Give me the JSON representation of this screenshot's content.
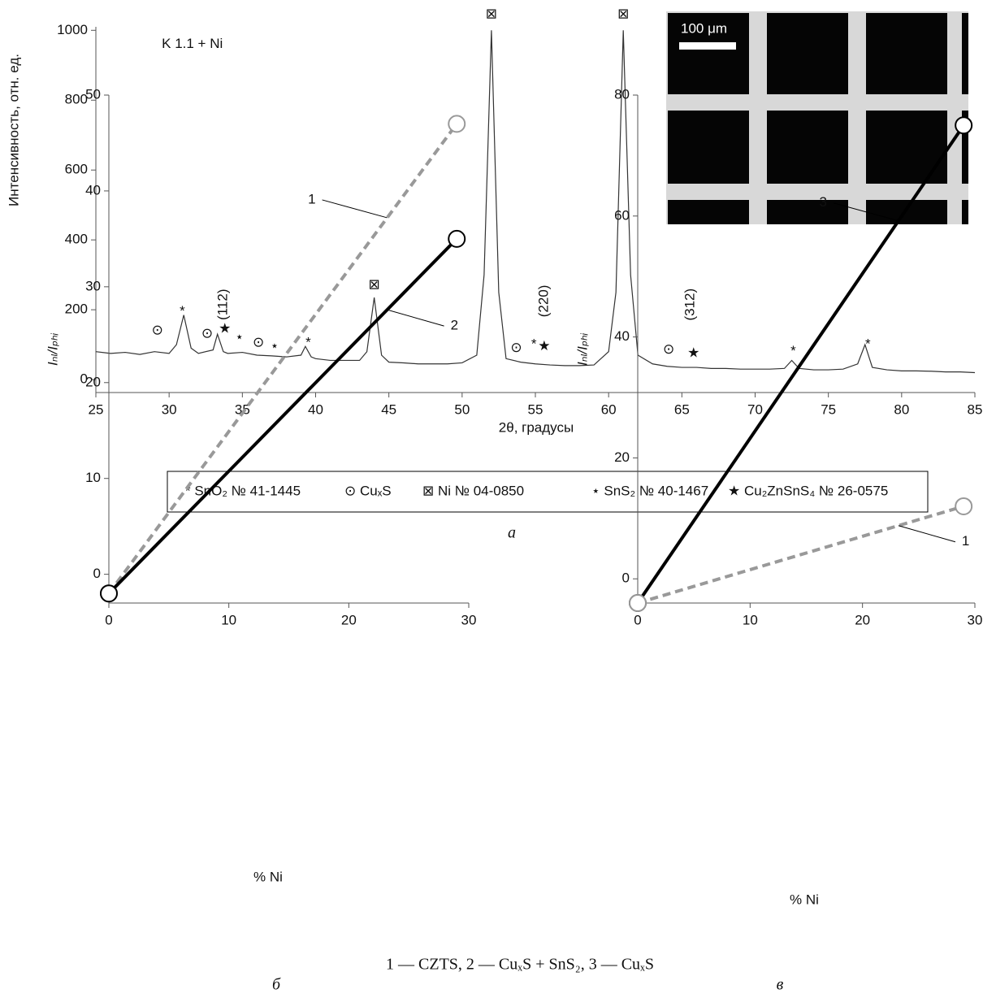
{
  "chart_data": [
    {
      "type": "line",
      "x_label": "2θ, градусы",
      "y_label": "Интенсивность, отн. ед.",
      "inset_label": "100 μm",
      "xlim": [
        25,
        85
      ],
      "xticks": [
        25,
        30,
        35,
        40,
        45,
        50,
        55,
        60,
        65,
        70,
        75,
        80,
        85
      ],
      "ylim": [
        -37,
        1010
      ],
      "yticks": [
        0,
        200,
        400,
        600,
        800,
        1000
      ],
      "series": [
        {
          "color": "#333333",
          "x": [
            25,
            26,
            27,
            28,
            29,
            30,
            30.5,
            31,
            31.5,
            32,
            33,
            33.3,
            33.7,
            34,
            35,
            36,
            37,
            38,
            39,
            39.3,
            39.7,
            40,
            41,
            42,
            43,
            43.5,
            44,
            44.5,
            45,
            46,
            47,
            48,
            49,
            50,
            51,
            51.5,
            52,
            52.5,
            53,
            54,
            55,
            56,
            57,
            58,
            59,
            60,
            60.5,
            61,
            61.5,
            62,
            63,
            64,
            65,
            66,
            67,
            68,
            69,
            70,
            71,
            72,
            72.5,
            73,
            74,
            75,
            76,
            77,
            77.5,
            78,
            79,
            80,
            81,
            82,
            83,
            84,
            85
          ],
          "values": [
            80,
            75,
            78,
            72,
            80,
            75,
            100,
            185,
            90,
            75,
            85,
            130,
            80,
            75,
            78,
            70,
            68,
            65,
            70,
            95,
            65,
            60,
            55,
            55,
            55,
            80,
            235,
            70,
            50,
            48,
            45,
            45,
            45,
            48,
            70,
            300,
            1000,
            250,
            60,
            50,
            45,
            42,
            40,
            40,
            42,
            80,
            250,
            1000,
            300,
            70,
            45,
            38,
            35,
            35,
            32,
            32,
            30,
            30,
            30,
            32,
            55,
            32,
            28,
            28,
            30,
            45,
            100,
            35,
            28,
            25,
            25,
            24,
            22,
            22,
            20
          ]
        }
      ],
      "annotations": [
        {
          "text": "K 1.1 + Ni",
          "x": 29.5,
          "y": 960
        },
        {
          "text": "⊙",
          "x": 29.2,
          "y": 140
        },
        {
          "text": "*",
          "x": 30.9,
          "y": 195
        },
        {
          "text": "⊙",
          "x": 32.6,
          "y": 130
        },
        {
          "text": "(112)",
          "x": 33.7,
          "y": 215
        },
        {
          "text": "★",
          "x": 33.8,
          "y": 145
        },
        {
          "text": "⋆",
          "x": 34.8,
          "y": 120
        },
        {
          "text": "⊙",
          "x": 36.1,
          "y": 105
        },
        {
          "text": "⋆",
          "x": 37.2,
          "y": 95
        },
        {
          "text": "*",
          "x": 39.5,
          "y": 105
        },
        {
          "text": "⊠",
          "x": 44,
          "y": 270
        },
        {
          "text": "⊠",
          "x": 52,
          "y": 1045
        },
        {
          "text": "⊙",
          "x": 53.7,
          "y": 90
        },
        {
          "text": "*",
          "x": 54.9,
          "y": 100
        },
        {
          "text": "★",
          "x": 55.6,
          "y": 95
        },
        {
          "text": "(220)",
          "x": 55.6,
          "y": 225
        },
        {
          "text": "⊠",
          "x": 61,
          "y": 1045
        },
        {
          "text": "⊙",
          "x": 64.1,
          "y": 85
        },
        {
          "text": "(312)",
          "x": 65.6,
          "y": 215
        },
        {
          "text": "★",
          "x": 65.8,
          "y": 75
        },
        {
          "text": "*",
          "x": 72.6,
          "y": 80
        },
        {
          "text": "*",
          "x": 77.7,
          "y": 100
        }
      ]
    },
    {
      "type": "line",
      "x_label": "% Ni",
      "y_label": "Iₙₗ/Iₚₕᵢ",
      "xlim": [
        0,
        30
      ],
      "xticks": [
        0,
        10,
        20,
        30
      ],
      "ylim": [
        -3,
        50
      ],
      "yticks": [
        0,
        10,
        20,
        30,
        40,
        50
      ],
      "series": [
        {
          "name": "1",
          "color": "#999999",
          "dashed": true,
          "x": [
            0,
            29
          ],
          "values": [
            -2,
            47
          ]
        },
        {
          "name": "2",
          "color": "#000000",
          "x": [
            0,
            29
          ],
          "values": [
            -2,
            35
          ]
        }
      ]
    },
    {
      "type": "line",
      "x_label": "% Ni",
      "y_label": "Iₙₗ/Iₚₕᵢ",
      "xlim": [
        0,
        30
      ],
      "xticks": [
        0,
        10,
        20,
        30
      ],
      "ylim": [
        -4,
        80
      ],
      "yticks": [
        0,
        20,
        40,
        60,
        80
      ],
      "series": [
        {
          "name": "3",
          "color": "#000000",
          "x": [
            0,
            29
          ],
          "values": [
            -4,
            75
          ]
        },
        {
          "name": "1",
          "color": "#999999",
          "dashed": true,
          "x": [
            0,
            29
          ],
          "values": [
            -4,
            12
          ]
        }
      ]
    }
  ],
  "legend": [
    "* SnO₂ № 41-1445",
    "⊙ CuₓS",
    "⊠ Ni № 04-0850",
    "⋆ SnS₂ № 40-1467",
    "★ Cu₂ZnSnS₄ № 26-0575"
  ],
  "captions": {
    "a": "а",
    "b": "б",
    "c": "в",
    "note": "1 — CZTS, 2 — CuₓS + SnS₂, 3 — CuₓS"
  }
}
